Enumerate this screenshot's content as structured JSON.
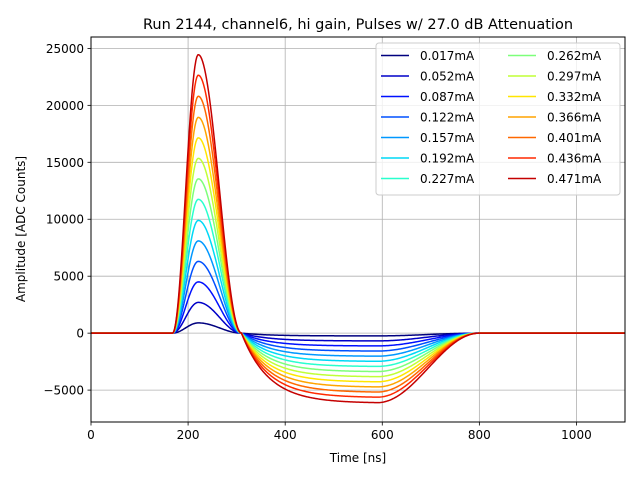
{
  "chart_data": {
    "type": "line",
    "title": "Run 2144, channel6, hi gain, Pulses w/ 27.0 dB Attenuation",
    "xlabel": "Time [ns]",
    "ylabel": "Amplitude [ADC Counts]",
    "xlim": [
      0,
      1100
    ],
    "ylim": [
      -7800,
      26000
    ],
    "xticks": [
      0,
      200,
      400,
      600,
      800,
      1000
    ],
    "yticks": [
      -5000,
      0,
      5000,
      10000,
      15000,
      20000,
      25000
    ],
    "xtick_labels": [
      "0",
      "200",
      "400",
      "600",
      "800",
      "1000"
    ],
    "ytick_labels": [
      "−5000",
      "0",
      "5000",
      "10000",
      "15000",
      "20000",
      "25000"
    ],
    "grid": true,
    "legend_position": "top-right",
    "legend_columns": 2,
    "shape": {
      "baseline_end_x": 168,
      "peak_x": 221,
      "zero_cross_x": 310,
      "undershoot_min_x": 590,
      "recovery_end_x": 800
    },
    "series": [
      {
        "name": "0.017mA",
        "color": "#00007f",
        "peak": 900,
        "undershoot": -240
      },
      {
        "name": "0.052mA",
        "color": "#0000c8",
        "peak": 2700,
        "undershoot": -680
      },
      {
        "name": "0.087mA",
        "color": "#0010ff",
        "peak": 4500,
        "undershoot": -1120
      },
      {
        "name": "0.122mA",
        "color": "#0050ff",
        "peak": 6300,
        "undershoot": -1570
      },
      {
        "name": "0.157mA",
        "color": "#0098ff",
        "peak": 8100,
        "undershoot": -2020
      },
      {
        "name": "0.192mA",
        "color": "#00d8f6",
        "peak": 9900,
        "undershoot": -2470
      },
      {
        "name": "0.227mA",
        "color": "#29ffce",
        "peak": 11750,
        "undershoot": -2920
      },
      {
        "name": "0.262mA",
        "color": "#7dff7a",
        "peak": 13550,
        "undershoot": -3370
      },
      {
        "name": "0.297mA",
        "color": "#c1ff36",
        "peak": 15350,
        "undershoot": -3820
      },
      {
        "name": "0.332mA",
        "color": "#ffe600",
        "peak": 17150,
        "undershoot": -4270
      },
      {
        "name": "0.366mA",
        "color": "#ffa400",
        "peak": 18950,
        "undershoot": -4720
      },
      {
        "name": "0.401mA",
        "color": "#ff6800",
        "peak": 20800,
        "undershoot": -5170
      },
      {
        "name": "0.436mA",
        "color": "#ff2900",
        "peak": 22650,
        "undershoot": -5620
      },
      {
        "name": "0.471mA",
        "color": "#c40000",
        "peak": 24450,
        "undershoot": -6100
      }
    ]
  }
}
